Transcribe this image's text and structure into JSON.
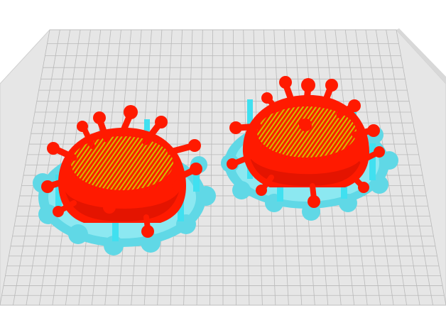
{
  "viewport": {
    "background": "#ffffff",
    "bed_color": "#e6e6e6",
    "grid_color": "#b9b9b9",
    "model_color": "#ff1a00",
    "model_dark": "#c81000",
    "infill_color": "#b8d000",
    "support_color": "#55e8e8",
    "brim_color": "#5ad0e0"
  },
  "models": [
    {
      "name": "left-virus-model",
      "icon": "virus-model-icon"
    },
    {
      "name": "right-virus-model",
      "icon": "virus-model-icon"
    }
  ]
}
